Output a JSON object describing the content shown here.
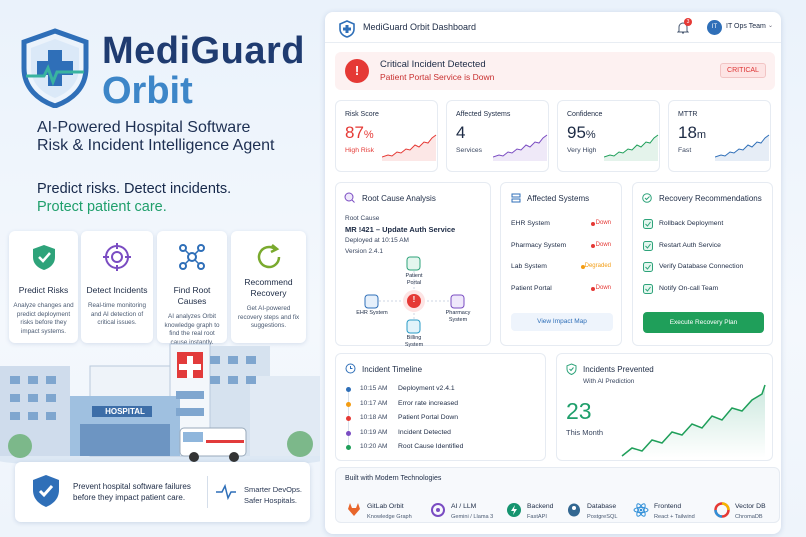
{
  "brand": {
    "name": "MediGuard",
    "product": "Orbit",
    "tagline": [
      "AI-Powered Hospital Software",
      "Risk & Incident Intelligence Agent"
    ],
    "slogan": "Predict risks. Detect incidents.",
    "slogan_accent": "Protect patient care."
  },
  "features": [
    {
      "title": "Predict Risks",
      "description": "Analyze changes and predict deployment risks before they impact systems."
    },
    {
      "title": "Detect Incidents",
      "description": "Real-time monitoring and AI detection of critical issues."
    },
    {
      "title": "Find Root Causes",
      "description": "AI analyzes Orbit knowledge graph to find the real root cause instantly."
    },
    {
      "title": "Recommend Recovery",
      "description": "Get AI-powered recovery steps and fix suggestions."
    }
  ],
  "hospital_sign": "HOSPITAL",
  "footer": {
    "message": "Prevent hospital software failures before they impact patient care.",
    "motto": "Smarter DevOps. Safer Hospitals."
  },
  "dashboard": {
    "title": "MediGuard Orbit Dashboard",
    "notifications": 3,
    "user_initials": "IT",
    "user": "IT Ops Team",
    "alert": {
      "title": "Critical Incident Detected",
      "message": "Patient Portal Service is Down",
      "severity": "CRITICAL"
    },
    "metrics": [
      {
        "label": "Risk Score",
        "value": 87,
        "unit": "%",
        "status": "High Risk"
      },
      {
        "label": "Affected Systems",
        "value": 4,
        "status": "Services"
      },
      {
        "label": "Confidence",
        "value": 95,
        "unit": "%",
        "status": "Very High"
      },
      {
        "label": "MTTR",
        "value": 18,
        "unit": "m",
        "status": "Fast"
      }
    ],
    "root_cause": {
      "title": "Root Cause Analysis",
      "label": "Root Cause",
      "change": "MR !421 – Update Auth Service",
      "deployed": "Deployed at 10:15 AM",
      "version": "Version 2.4.1",
      "nodes": [
        "Patient Portal",
        "EHR System",
        "Pharmacy System",
        "Billing System"
      ],
      "center": "!"
    },
    "affected": {
      "title": "Affected Systems",
      "systems": [
        {
          "name": "EHR System",
          "status": "Down"
        },
        {
          "name": "Pharmacy System",
          "status": "Down"
        },
        {
          "name": "Lab System",
          "status": "Degraded"
        },
        {
          "name": "Patient Portal",
          "status": "Down"
        }
      ],
      "button": "View Impact Map"
    },
    "recovery": {
      "title": "Recovery Recommendations",
      "steps": [
        "Rollback Deployment",
        "Restart Auth Service",
        "Verify Database Connection",
        "Notify On-call Team"
      ],
      "button": "Execute Recovery Plan"
    },
    "timeline": {
      "title": "Incident Timeline",
      "events": [
        {
          "time": "10:15 AM",
          "event": "Deployment v2.4.1"
        },
        {
          "time": "10:17 AM",
          "event": "Error rate increased"
        },
        {
          "time": "10:18 AM",
          "event": "Patient Portal Down"
        },
        {
          "time": "10:19 AM",
          "event": "Incident Detected"
        },
        {
          "time": "10:20 AM",
          "event": "Root Cause Identified"
        }
      ]
    },
    "prevented": {
      "title": "Incidents Prevented",
      "subtitle": "With AI Prediction",
      "value": 23,
      "period": "This Month"
    },
    "tech": {
      "title": "Built with Modern Technologies",
      "items": [
        {
          "name": "GitLab Orbit",
          "detail": "Knowledge Graph"
        },
        {
          "name": "AI / LLM",
          "detail": "Gemini / Llama 3"
        },
        {
          "name": "Backend",
          "detail": "FastAPI"
        },
        {
          "name": "Database",
          "detail": "PostgreSQL"
        },
        {
          "name": "Frontend",
          "detail": "React + Tailwind"
        },
        {
          "name": "Vector DB",
          "detail": "ChromaDB"
        }
      ]
    }
  }
}
